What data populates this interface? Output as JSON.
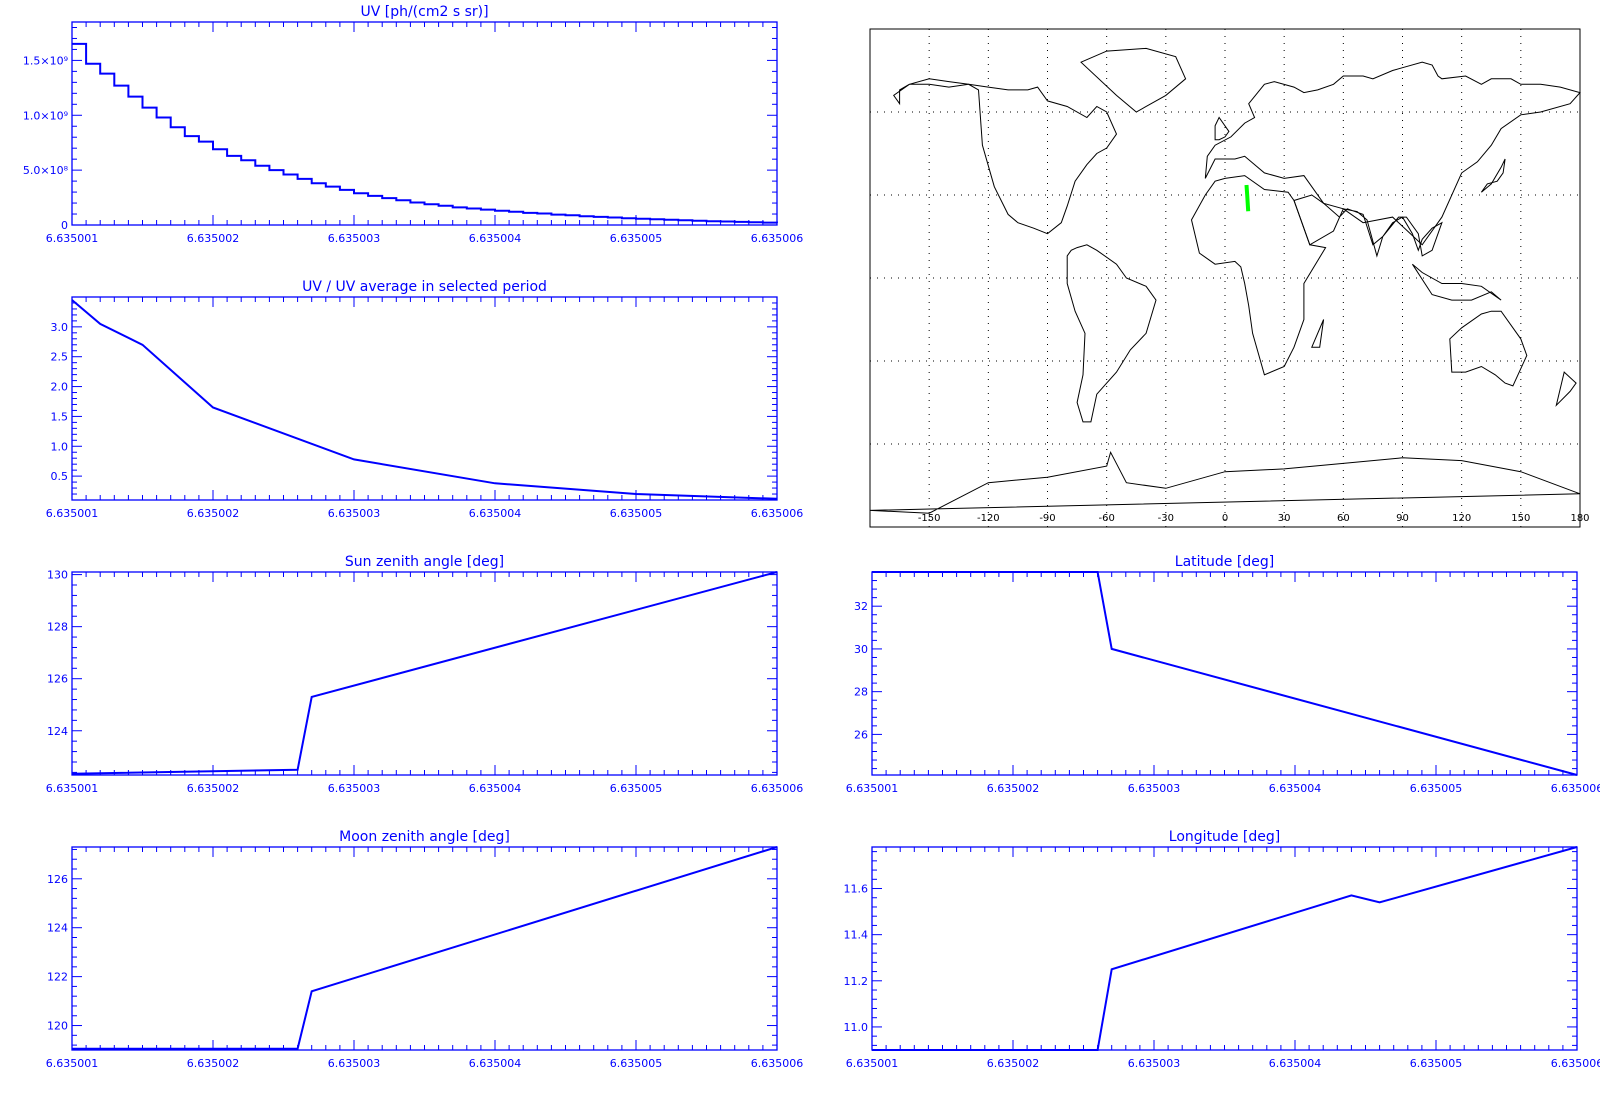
{
  "colors": {
    "axis": "#0000ff",
    "series": "#0000ff",
    "track": "#00ff00",
    "coast": "#000000"
  },
  "chart_data": [
    {
      "type": "line",
      "id": "uv",
      "step": true,
      "title": "UV [ph/(cm2 s sr)]",
      "xticks": [
        "6.635001",
        "6.635002",
        "6.635003",
        "6.635004",
        "6.635005",
        "6.635006"
      ],
      "xlim": [
        6.635001,
        6.635006
      ],
      "yticks": [
        {
          "v": 0,
          "l": "0"
        },
        {
          "v": 500000000.0,
          "l": "5.0×10⁸"
        },
        {
          "v": 1000000000.0,
          "l": "1.0×10⁹"
        },
        {
          "v": 1500000000.0,
          "l": "1.5×10⁹"
        }
      ],
      "ylim": [
        0,
        1850000000.0
      ],
      "x": [
        6.635001,
        6.6350011,
        6.6350012,
        6.6350013,
        6.6350014,
        6.6350015,
        6.6350016,
        6.6350017,
        6.6350018,
        6.6350019,
        6.635002,
        6.6350021,
        6.6350022,
        6.6350023,
        6.6350024,
        6.6350025,
        6.6350026,
        6.6350027,
        6.6350028,
        6.6350029,
        6.635003,
        6.6350031,
        6.6350032,
        6.6350033,
        6.6350034,
        6.6350035,
        6.6350036,
        6.6350037,
        6.6350038,
        6.6350039,
        6.635004,
        6.6350041,
        6.6350042,
        6.6350043,
        6.6350044,
        6.6350045,
        6.6350046,
        6.6350047,
        6.6350048,
        6.6350049,
        6.635005,
        6.6350051,
        6.6350052,
        6.6350053,
        6.6350054,
        6.6350055,
        6.6350056,
        6.6350057,
        6.6350058,
        6.6350059,
        6.635006
      ],
      "values": [
        1650000000.0,
        1470000000.0,
        1380000000.0,
        1270000000.0,
        1170000000.0,
        1070000000.0,
        980000000.0,
        890000000.0,
        810000000.0,
        760000000.0,
        690000000.0,
        630000000.0,
        590000000.0,
        540000000.0,
        500000000.0,
        460000000.0,
        420000000.0,
        380000000.0,
        350000000.0,
        320000000.0,
        290000000.0,
        265000000.0,
        245000000.0,
        225000000.0,
        205000000.0,
        190000000.0,
        175000000.0,
        160000000.0,
        150000000.0,
        140000000.0,
        130000000.0,
        120000000.0,
        110000000.0,
        105000000.0,
        95000000.0,
        88000000.0,
        80000000.0,
        74000000.0,
        68000000.0,
        62000000.0,
        57000000.0,
        52000000.0,
        47000000.0,
        43000000.0,
        39000000.0,
        35000000.0,
        32000000.0,
        28000000.0,
        25000000.0,
        22000000.0,
        20000000.0
      ]
    },
    {
      "type": "line",
      "id": "uvratio",
      "title": "UV / UV average in selected period",
      "xticks": [
        "6.635001",
        "6.635002",
        "6.635003",
        "6.635004",
        "6.635005",
        "6.635006"
      ],
      "xlim": [
        6.635001,
        6.635006
      ],
      "yticks": [
        {
          "v": 0.5,
          "l": "0.5"
        },
        {
          "v": 1.0,
          "l": "1.0"
        },
        {
          "v": 1.5,
          "l": "1.5"
        },
        {
          "v": 2.0,
          "l": "2.0"
        },
        {
          "v": 2.5,
          "l": "2.5"
        },
        {
          "v": 3.0,
          "l": "3.0"
        }
      ],
      "ylim": [
        0.1,
        3.5
      ],
      "x": [
        6.635001,
        6.6350012,
        6.6350015,
        6.635002,
        6.635003,
        6.635004,
        6.635005,
        6.635006
      ],
      "values": [
        3.45,
        3.05,
        2.7,
        1.65,
        0.78,
        0.38,
        0.2,
        0.12
      ]
    },
    {
      "type": "line",
      "id": "sunzen",
      "title": "Sun zenith angle [deg]",
      "xticks": [
        "6.635001",
        "6.635002",
        "6.635003",
        "6.635004",
        "6.635005",
        "6.635006"
      ],
      "xlim": [
        6.635001,
        6.635006
      ],
      "yticks": [
        {
          "v": 124,
          "l": "124"
        },
        {
          "v": 126,
          "l": "126"
        },
        {
          "v": 128,
          "l": "128"
        },
        {
          "v": 130,
          "l": "130"
        }
      ],
      "ylim": [
        122.3,
        130.1
      ],
      "x": [
        6.635001,
        6.6350026,
        6.6350027,
        6.635006
      ],
      "values": [
        122.35,
        122.5,
        125.3,
        130.1
      ]
    },
    {
      "type": "line",
      "id": "lat",
      "title": "Latitude [deg]",
      "xticks": [
        "6.635001",
        "6.635002",
        "6.635003",
        "6.635004",
        "6.635005",
        "6.635006"
      ],
      "xlim": [
        6.635001,
        6.635006
      ],
      "yticks": [
        {
          "v": 26,
          "l": "26"
        },
        {
          "v": 28,
          "l": "28"
        },
        {
          "v": 30,
          "l": "30"
        },
        {
          "v": 32,
          "l": "32"
        }
      ],
      "ylim": [
        24.1,
        33.6
      ],
      "x": [
        6.635001,
        6.6350026,
        6.6350027,
        6.635006
      ],
      "values": [
        33.6,
        33.6,
        30.0,
        24.1
      ]
    },
    {
      "type": "line",
      "id": "moonzen",
      "title": "Moon zenith angle [deg]",
      "xticks": [
        "6.635001",
        "6.635002",
        "6.635003",
        "6.635004",
        "6.635005",
        "6.635006"
      ],
      "xlim": [
        6.635001,
        6.635006
      ],
      "yticks": [
        {
          "v": 120,
          "l": "120"
        },
        {
          "v": 122,
          "l": "122"
        },
        {
          "v": 124,
          "l": "124"
        },
        {
          "v": 126,
          "l": "126"
        }
      ],
      "ylim": [
        119.0,
        127.3
      ],
      "x": [
        6.635001,
        6.6350026,
        6.6350027,
        6.635006
      ],
      "values": [
        119.05,
        119.05,
        121.4,
        127.3
      ]
    },
    {
      "type": "line",
      "id": "lon",
      "title": "Longitude [deg]",
      "xticks": [
        "6.635001",
        "6.635002",
        "6.635003",
        "6.635004",
        "6.635005",
        "6.635006"
      ],
      "xlim": [
        6.635001,
        6.635006
      ],
      "yticks": [
        {
          "v": 11.0,
          "l": "11.0"
        },
        {
          "v": 11.2,
          "l": "11.2"
        },
        {
          "v": 11.4,
          "l": "11.4"
        },
        {
          "v": 11.6,
          "l": "11.6"
        }
      ],
      "ylim": [
        10.9,
        11.78
      ],
      "x": [
        6.635001,
        6.6350026,
        6.6350027,
        6.6350044,
        6.6350046,
        6.635006
      ],
      "values": [
        10.9,
        10.9,
        11.25,
        11.57,
        11.54,
        11.78
      ]
    }
  ],
  "map": {
    "xticks": [
      -150,
      -120,
      -90,
      -60,
      -30,
      0,
      30,
      60,
      90,
      120,
      150,
      180
    ],
    "xtick_labels": [
      "-150",
      "-120",
      "-90",
      "-60",
      "-30",
      "0",
      "30",
      "60",
      "90",
      "120",
      "150",
      "180"
    ],
    "lon_range": [
      -180,
      180
    ],
    "lat_range": [
      -90,
      90
    ],
    "grid_lats": [
      60,
      30,
      0,
      -30,
      -60
    ],
    "track": {
      "lon": [
        10.9,
        11.2,
        11.25,
        11.5,
        11.78
      ],
      "lat": [
        33.6,
        30.5,
        30.0,
        27.0,
        24.1
      ]
    },
    "landmasses": [
      {
        "name": "north-america",
        "lon": [
          -165,
          -160,
          -150,
          -140,
          -130,
          -125,
          -123,
          -117,
          -110,
          -105,
          -97,
          -90,
          -83,
          -80,
          -76,
          -70,
          -65,
          -60,
          -55,
          -60,
          -65,
          -70,
          -80,
          -90,
          -95,
          -100,
          -110,
          -120,
          -130,
          -140,
          -150,
          -160,
          -168,
          -165
        ],
        "lat": [
          68,
          70,
          70,
          69,
          70,
          68,
          48,
          33,
          23,
          20,
          18,
          16,
          20,
          26,
          35,
          41,
          45,
          47,
          52,
          60,
          62,
          58,
          62,
          64,
          69,
          68,
          68,
          69,
          70,
          71,
          72,
          70,
          66,
          63
        ]
      },
      {
        "name": "south-america",
        "lon": [
          -80,
          -78,
          -75,
          -70,
          -65,
          -55,
          -50,
          -40,
          -35,
          -40,
          -48,
          -55,
          -60,
          -65,
          -68,
          -72,
          -75,
          -72,
          -71,
          -76,
          -80
        ],
        "lat": [
          8,
          10,
          11,
          12,
          10,
          5,
          0,
          -3,
          -8,
          -20,
          -26,
          -34,
          -38,
          -42,
          -52,
          -52,
          -45,
          -35,
          -20,
          -12,
          -2
        ]
      },
      {
        "name": "greenland",
        "lon": [
          -73,
          -60,
          -40,
          -25,
          -20,
          -30,
          -45,
          -55,
          -73
        ],
        "lat": [
          78,
          82,
          83,
          80,
          72,
          66,
          60,
          66,
          78
        ]
      },
      {
        "name": "eurasia",
        "lon": [
          -10,
          -9,
          -5,
          3,
          10,
          15,
          12,
          20,
          25,
          35,
          40,
          47,
          55,
          60,
          70,
          75,
          85,
          90,
          100,
          105,
          108,
          110,
          122,
          130,
          135,
          140,
          145,
          150,
          160,
          170,
          180,
          175,
          160,
          150,
          140,
          135,
          128,
          120,
          110,
          100,
          85,
          70,
          60,
          50,
          40,
          30,
          20,
          10,
          5,
          -5,
          -10
        ],
        "lat": [
          36,
          44,
          48,
          51,
          56,
          58,
          63,
          70,
          71,
          69,
          67,
          68,
          70,
          73,
          73,
          72,
          75,
          76,
          78,
          77,
          73,
          72,
          73,
          70,
          72,
          72,
          72,
          70,
          70,
          69,
          67,
          63,
          60,
          59,
          54,
          48,
          42,
          38,
          22,
          12,
          22,
          20,
          25,
          27,
          37,
          36,
          38,
          44,
          43,
          43,
          36
        ]
      },
      {
        "name": "africa",
        "lon": [
          -17,
          -10,
          -5,
          0,
          10,
          20,
          32,
          35,
          43,
          51,
          40,
          40,
          35,
          30,
          20,
          18,
          14,
          12,
          10,
          8,
          5,
          -5,
          -13,
          -17
        ],
        "lat": [
          21,
          30,
          35,
          36,
          37,
          32,
          31,
          28,
          12,
          11,
          -2,
          -15,
          -25,
          -32,
          -35,
          -30,
          -20,
          -10,
          -2,
          4,
          6,
          5,
          9,
          21
        ]
      },
      {
        "name": "arabia-india",
        "lon": [
          35,
          43,
          55,
          60,
          67,
          72,
          77,
          80,
          88,
          92,
          98,
          100,
          105,
          110,
          105,
          100,
          98,
          95,
          90,
          85,
          80,
          75,
          70,
          62,
          58,
          50,
          44,
          35
        ],
        "lat": [
          28,
          12,
          17,
          25,
          24,
          21,
          8,
          15,
          22,
          22,
          16,
          8,
          10,
          20,
          18,
          14,
          10,
          16,
          22,
          20,
          15,
          12,
          23,
          25,
          22,
          27,
          30,
          28
        ]
      },
      {
        "name": "australia",
        "lon": [
          114,
          115,
          122,
          130,
          137,
          142,
          146,
          153,
          150,
          140,
          135,
          130,
          120,
          114
        ],
        "lat": [
          -22,
          -34,
          -34,
          -32,
          -35,
          -38,
          -39,
          -28,
          -22,
          -12,
          -12,
          -13,
          -18,
          -22
        ]
      },
      {
        "name": "antarctica",
        "lon": [
          -180,
          -150,
          -120,
          -90,
          -60,
          -58,
          -50,
          -30,
          0,
          30,
          60,
          90,
          120,
          150,
          180
        ],
        "lat": [
          -84,
          -85,
          -74,
          -72,
          -68,
          -63,
          -74,
          -76,
          -70,
          -69,
          -67,
          -65,
          -66,
          -70,
          -78
        ]
      },
      {
        "name": "japan",
        "lon": [
          130,
          133,
          138,
          141,
          142,
          140,
          135,
          130
        ],
        "lat": [
          31,
          34,
          35,
          38,
          43,
          40,
          34,
          31
        ]
      },
      {
        "name": "uk",
        "lon": [
          -5,
          -3,
          0,
          2,
          -3,
          -5
        ],
        "lat": [
          50,
          50,
          51,
          53,
          58,
          55
        ]
      },
      {
        "name": "madagascar",
        "lon": [
          44,
          50,
          48,
          44
        ],
        "lat": [
          -25,
          -15,
          -25,
          -25
        ]
      },
      {
        "name": "new-zealand",
        "lon": [
          172,
          178,
          175,
          168,
          172
        ],
        "lat": [
          -34,
          -38,
          -41,
          -46,
          -34
        ]
      },
      {
        "name": "indonesia",
        "lon": [
          95,
          105,
          115,
          125,
          135,
          140,
          130,
          120,
          110,
          100,
          95
        ],
        "lat": [
          5,
          -6,
          -8,
          -8,
          -5,
          -8,
          -3,
          -2,
          -2,
          2,
          5
        ]
      }
    ]
  }
}
